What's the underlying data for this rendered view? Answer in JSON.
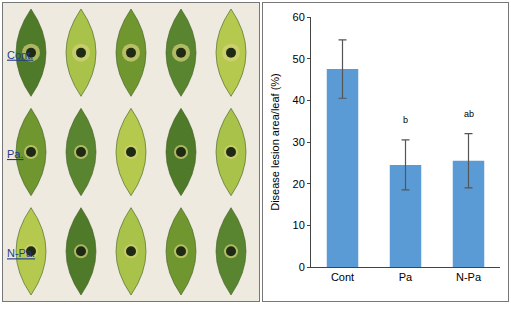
{
  "chart_data": {
    "type": "bar",
    "categories": [
      "Cont",
      "Pa",
      "N-Pa"
    ],
    "values": [
      47.5,
      24.5,
      25.5
    ],
    "errors": [
      7,
      6,
      6.5
    ],
    "color": "#5b9bd5",
    "y_label": "Disease lesion area/leaf (%)",
    "ylim": [
      0,
      60
    ],
    "yticks": [
      0,
      10,
      20,
      30,
      40,
      50,
      60
    ],
    "grid": false,
    "annotations": [
      {
        "category": "Pa",
        "text": "b"
      },
      {
        "category": "N-Pa",
        "text": "ab"
      }
    ]
  },
  "photo": {
    "row_labels": [
      "Cont.",
      "Pa.",
      "N-Pa."
    ]
  }
}
